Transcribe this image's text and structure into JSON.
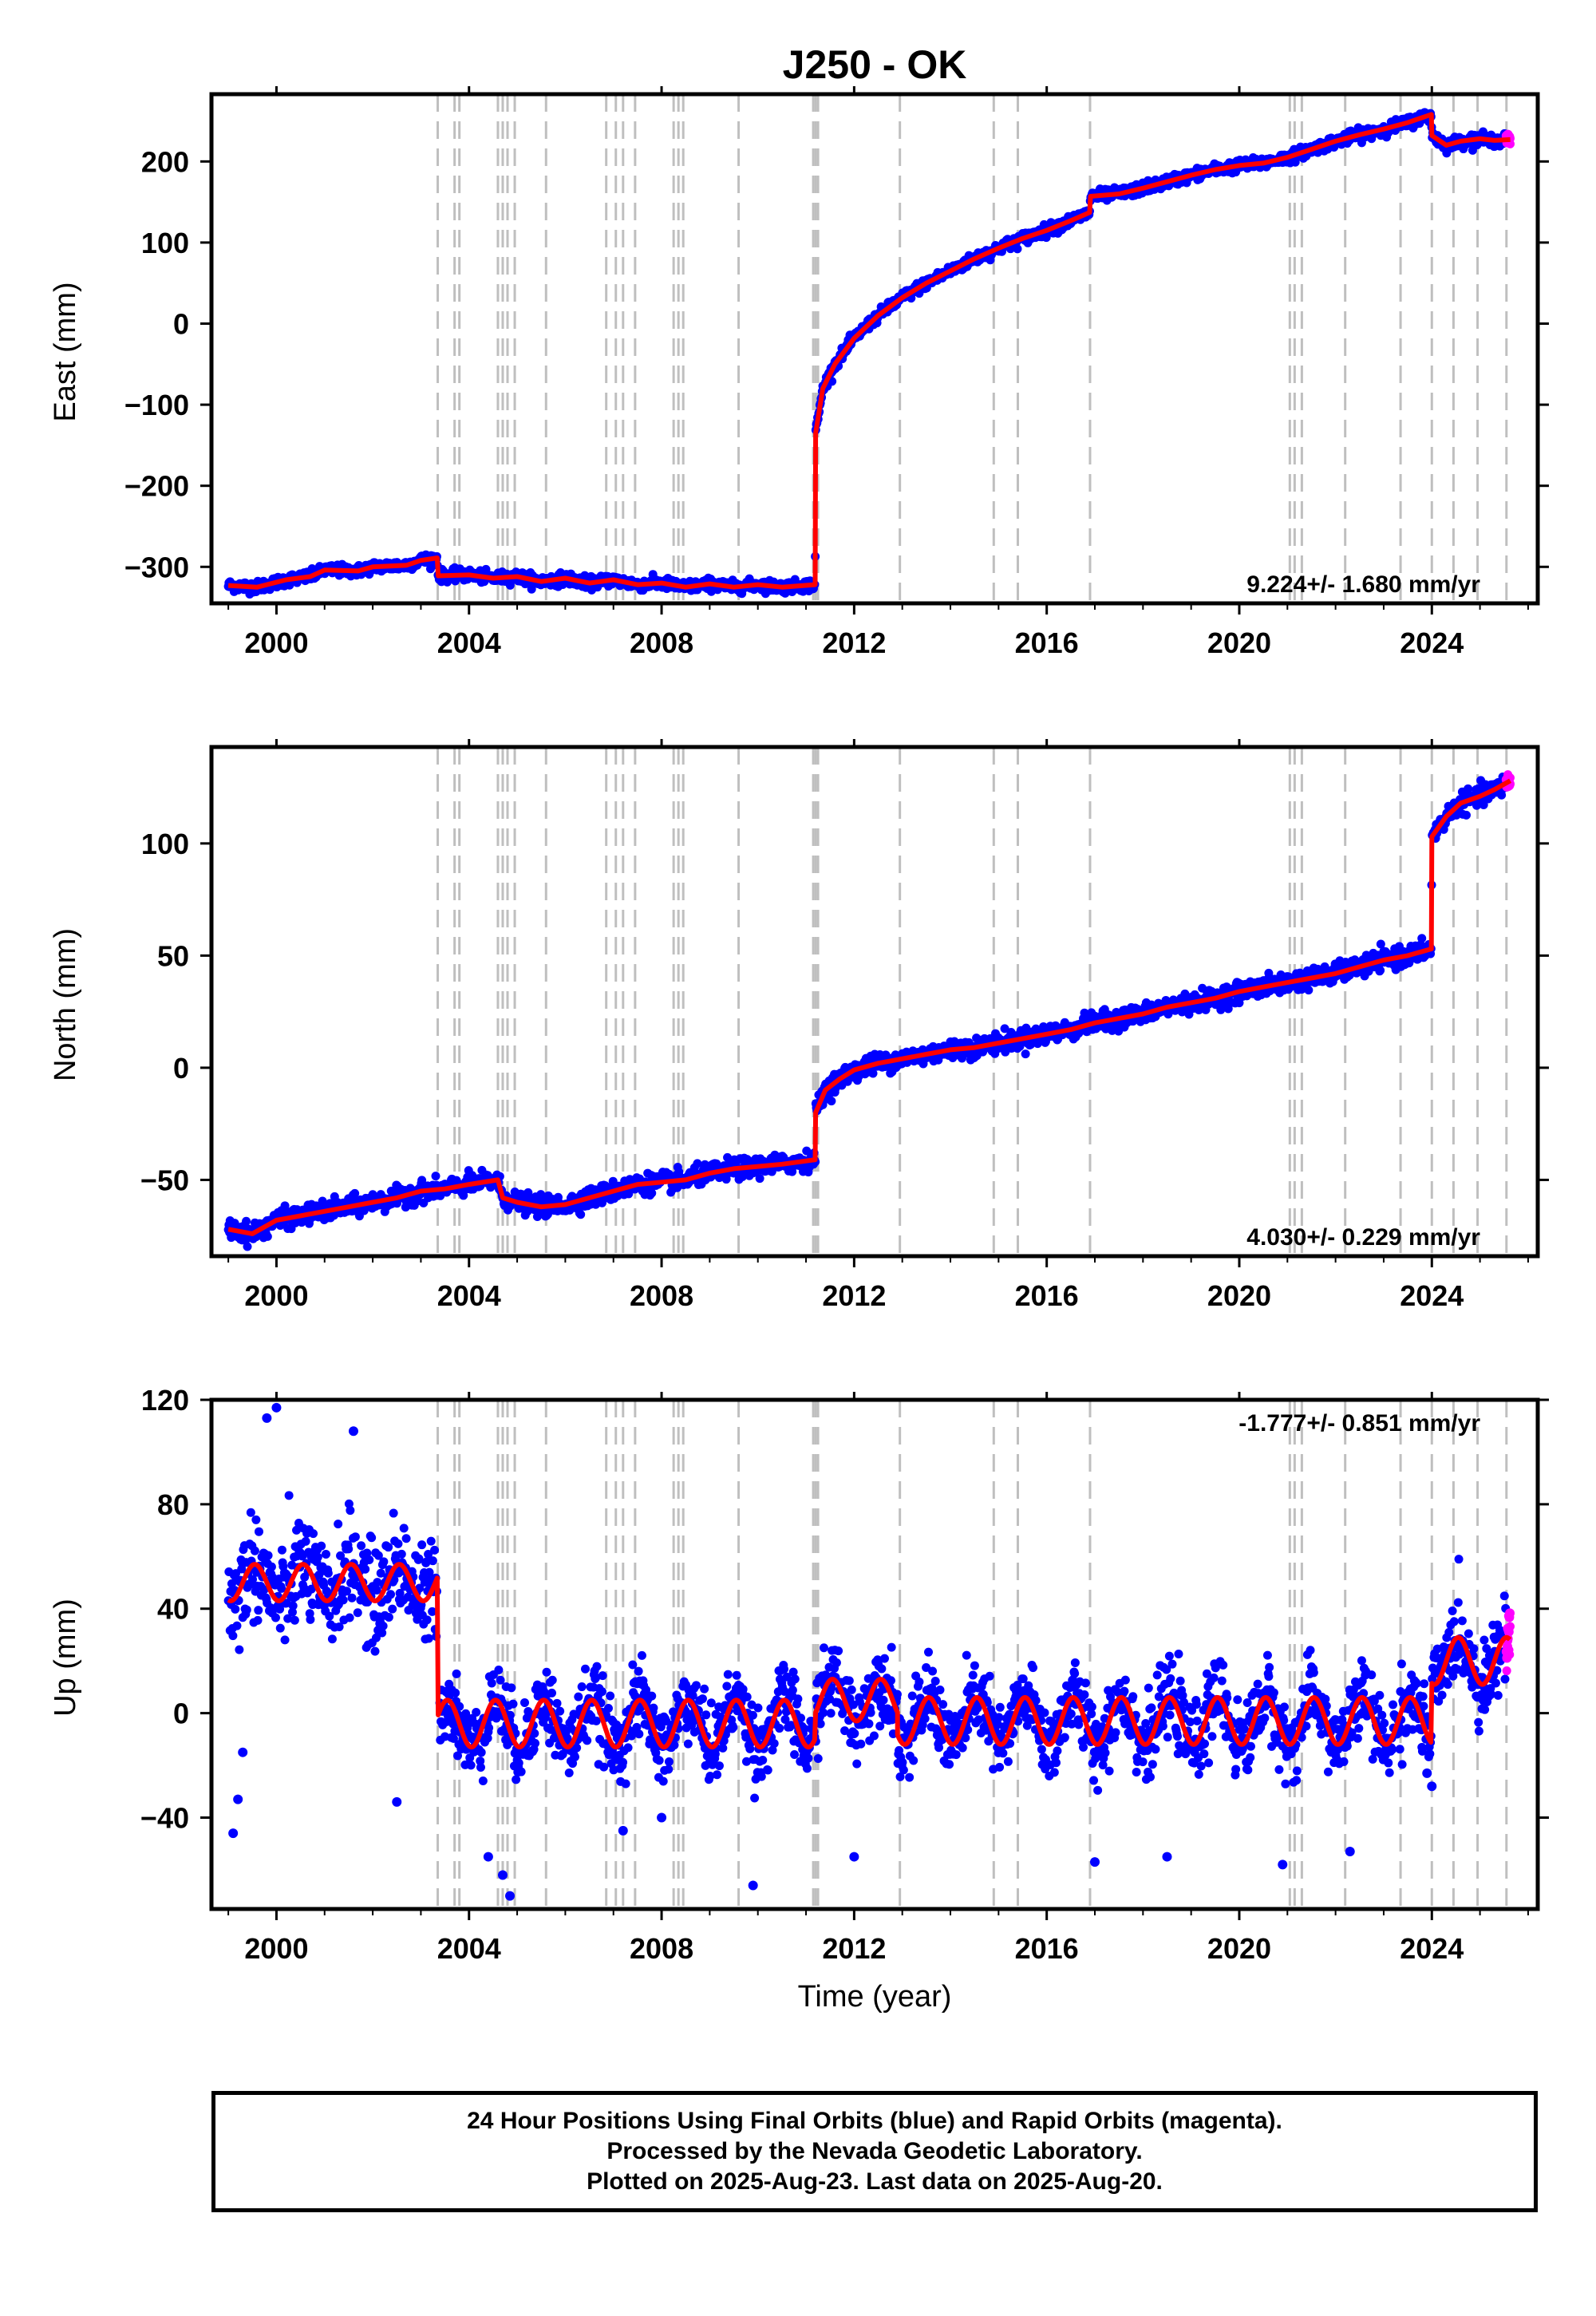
{
  "title": "J250 - OK",
  "xlabel": "Time (year)",
  "footer": {
    "line1": "24 Hour Positions Using Final Orbits (blue) and Rapid Orbits (magenta).",
    "line2": "Processed by the Nevada Geodetic Laboratory.",
    "line3": "Plotted on 2025-Aug-23. Last data on 2025-Aug-20."
  },
  "chart_data": [
    {
      "type": "scatter",
      "panel": "east",
      "ylabel": "East (mm)",
      "rate_text": "9.224+/- 1.680 mm/yr",
      "xlim": [
        1998.65,
        2026.2
      ],
      "ylim": [
        -345,
        283
      ],
      "xticks": [
        2000,
        2004,
        2008,
        2012,
        2016,
        2020,
        2024
      ],
      "yticks": [
        -300,
        -200,
        -100,
        0,
        100,
        200
      ],
      "ytick_labels": [
        "−300",
        "−200",
        "−100",
        "0",
        "100",
        "200"
      ],
      "equipment_changes": [
        2003.35,
        2003.7,
        2003.8,
        2004.6,
        2004.7,
        2004.8,
        2004.95,
        2005.6,
        2006.85,
        2007.05,
        2007.2,
        2007.45,
        2008.25,
        2008.35,
        2008.45,
        2009.6,
        2011.15,
        2011.2,
        2011.25,
        2012.95,
        2014.9,
        2015.4,
        2016.9,
        2021.05,
        2021.15,
        2021.3,
        2022.2,
        2023.35,
        2024.0,
        2024.45,
        2024.95,
        2025.55
      ],
      "model": [
        [
          1999.0,
          -323
        ],
        [
          1999.6,
          -325
        ],
        [
          2000.2,
          -316
        ],
        [
          2000.7,
          -312
        ],
        [
          2001.0,
          -304
        ],
        [
          2001.7,
          -305
        ],
        [
          2002.0,
          -300
        ],
        [
          2002.7,
          -298
        ],
        [
          2003.0,
          -292
        ],
        [
          2003.34,
          -289
        ],
        [
          2003.36,
          -311
        ],
        [
          2004.0,
          -310
        ],
        [
          2004.5,
          -314
        ],
        [
          2005.0,
          -312
        ],
        [
          2005.5,
          -318
        ],
        [
          2006.0,
          -314
        ],
        [
          2006.5,
          -320
        ],
        [
          2007.0,
          -316
        ],
        [
          2007.5,
          -322
        ],
        [
          2008.0,
          -320
        ],
        [
          2008.5,
          -325
        ],
        [
          2009.0,
          -321
        ],
        [
          2009.5,
          -325
        ],
        [
          2010.0,
          -322
        ],
        [
          2010.5,
          -325
        ],
        [
          2011.19,
          -322
        ],
        [
          2011.2,
          -135
        ],
        [
          2011.35,
          -80
        ],
        [
          2011.6,
          -50
        ],
        [
          2012.0,
          -18
        ],
        [
          2012.5,
          10
        ],
        [
          2013.0,
          32
        ],
        [
          2013.5,
          50
        ],
        [
          2014.0,
          65
        ],
        [
          2014.5,
          80
        ],
        [
          2015.0,
          93
        ],
        [
          2015.5,
          105
        ],
        [
          2016.0,
          115
        ],
        [
          2016.5,
          127
        ],
        [
          2016.89,
          137
        ],
        [
          2016.91,
          157
        ],
        [
          2017.5,
          160
        ],
        [
          2018.0,
          167
        ],
        [
          2018.5,
          175
        ],
        [
          2019.0,
          183
        ],
        [
          2019.5,
          190
        ],
        [
          2020.0,
          195
        ],
        [
          2020.5,
          198
        ],
        [
          2021.0,
          205
        ],
        [
          2021.5,
          215
        ],
        [
          2022.0,
          225
        ],
        [
          2022.5,
          233
        ],
        [
          2023.0,
          240
        ],
        [
          2023.5,
          248
        ],
        [
          2023.99,
          258
        ],
        [
          2024.0,
          232
        ],
        [
          2024.3,
          220
        ],
        [
          2024.6,
          225
        ],
        [
          2025.0,
          228
        ],
        [
          2025.3,
          226
        ],
        [
          2025.63,
          227
        ]
      ],
      "rapid_end": [
        2025.55,
        2025.62
      ],
      "noise_mm": 5
    },
    {
      "type": "scatter",
      "panel": "north",
      "ylabel": "North (mm)",
      "rate_text": "4.030+/- 0.229 mm/yr",
      "xlim": [
        1998.65,
        2026.2
      ],
      "ylim": [
        -84,
        143
      ],
      "xticks": [
        2000,
        2004,
        2008,
        2012,
        2016,
        2020,
        2024
      ],
      "yticks": [
        -50,
        0,
        50,
        100
      ],
      "ytick_labels": [
        "−50",
        "0",
        "50",
        "100"
      ],
      "equipment_changes": [
        2003.35,
        2003.7,
        2003.8,
        2004.6,
        2004.7,
        2004.8,
        2004.95,
        2005.6,
        2006.85,
        2007.05,
        2007.2,
        2007.45,
        2008.25,
        2008.35,
        2008.45,
        2009.6,
        2011.15,
        2011.2,
        2011.25,
        2012.95,
        2014.9,
        2015.4,
        2016.9,
        2021.05,
        2021.15,
        2021.3,
        2022.2,
        2023.35,
        2024.0,
        2024.45,
        2024.95,
        2025.55
      ],
      "model": [
        [
          1999.0,
          -72
        ],
        [
          1999.5,
          -74
        ],
        [
          2000.0,
          -68
        ],
        [
          2000.5,
          -66
        ],
        [
          2001.0,
          -64
        ],
        [
          2001.5,
          -62
        ],
        [
          2002.0,
          -60
        ],
        [
          2002.5,
          -58
        ],
        [
          2003.0,
          -55
        ],
        [
          2003.5,
          -54
        ],
        [
          2004.0,
          -52
        ],
        [
          2004.6,
          -50
        ],
        [
          2004.7,
          -58
        ],
        [
          2005.0,
          -60
        ],
        [
          2005.5,
          -62
        ],
        [
          2006.0,
          -61
        ],
        [
          2006.5,
          -58
        ],
        [
          2007.0,
          -55
        ],
        [
          2007.5,
          -52
        ],
        [
          2008.0,
          -51
        ],
        [
          2008.5,
          -50
        ],
        [
          2009.0,
          -47
        ],
        [
          2009.5,
          -45
        ],
        [
          2010.0,
          -44
        ],
        [
          2010.5,
          -43
        ],
        [
          2011.19,
          -41
        ],
        [
          2011.2,
          -20
        ],
        [
          2011.4,
          -10
        ],
        [
          2011.7,
          -5
        ],
        [
          2012.0,
          -1
        ],
        [
          2012.5,
          2
        ],
        [
          2013.0,
          4
        ],
        [
          2013.5,
          6
        ],
        [
          2014.0,
          8
        ],
        [
          2014.5,
          9
        ],
        [
          2015.0,
          11
        ],
        [
          2015.5,
          13
        ],
        [
          2016.0,
          15
        ],
        [
          2016.5,
          17
        ],
        [
          2017.0,
          20
        ],
        [
          2017.5,
          22
        ],
        [
          2018.0,
          24
        ],
        [
          2018.5,
          27
        ],
        [
          2019.0,
          29
        ],
        [
          2019.5,
          31
        ],
        [
          2020.0,
          34
        ],
        [
          2020.5,
          36
        ],
        [
          2021.0,
          38
        ],
        [
          2021.5,
          40
        ],
        [
          2022.0,
          42
        ],
        [
          2022.5,
          45
        ],
        [
          2023.0,
          48
        ],
        [
          2023.5,
          50
        ],
        [
          2023.99,
          53
        ],
        [
          2024.0,
          103
        ],
        [
          2024.3,
          112
        ],
        [
          2024.6,
          118
        ],
        [
          2025.0,
          121
        ],
        [
          2025.3,
          124
        ],
        [
          2025.63,
          128
        ]
      ],
      "rapid_end": [
        2025.55,
        2025.62
      ],
      "noise_mm": 3
    },
    {
      "type": "scatter",
      "panel": "up",
      "ylabel": "Up (mm)",
      "rate_text": "-1.777+/- 0.851 mm/yr",
      "xlim": [
        1998.65,
        2026.2
      ],
      "ylim": [
        -75,
        120
      ],
      "xticks": [
        2000,
        2004,
        2008,
        2012,
        2016,
        2020,
        2024
      ],
      "yticks": [
        -40,
        0,
        40,
        80,
        120
      ],
      "ytick_labels": [
        "−40",
        "0",
        "40",
        "80",
        "120"
      ],
      "equipment_changes": [
        2003.35,
        2003.7,
        2003.8,
        2004.6,
        2004.7,
        2004.8,
        2004.95,
        2005.6,
        2006.85,
        2007.05,
        2007.2,
        2007.45,
        2008.25,
        2008.35,
        2008.45,
        2009.6,
        2011.15,
        2011.2,
        2011.25,
        2012.95,
        2014.9,
        2015.4,
        2016.9,
        2021.05,
        2021.15,
        2021.3,
        2022.2,
        2023.35,
        2024.0,
        2024.45,
        2024.95,
        2025.55
      ],
      "model_seasonal": [
        {
          "start": 1999.0,
          "end": 2003.34,
          "mean": 50,
          "amp": 7
        },
        {
          "start": 2003.36,
          "end": 2011.19,
          "mean": -4,
          "amp": 9
        },
        {
          "start": 2011.2,
          "end": 2012.9,
          "mean": 5,
          "amp": 8
        },
        {
          "start": 2012.9,
          "end": 2023.99,
          "mean": -3,
          "amp": 9
        },
        {
          "start": 2024.0,
          "end": 2025.63,
          "mean": 20,
          "amp": 9
        }
      ],
      "rapid_end": [
        2025.55,
        2025.62
      ],
      "noise_mm": 10,
      "outliers": [
        [
          1999.1,
          -46
        ],
        [
          1999.2,
          -33
        ],
        [
          1999.3,
          -15
        ],
        [
          1999.8,
          113
        ],
        [
          2000.0,
          117
        ],
        [
          2001.6,
          108
        ],
        [
          2002.5,
          -34
        ],
        [
          2004.4,
          -55
        ],
        [
          2004.7,
          -62
        ],
        [
          2004.85,
          -70
        ],
        [
          2007.2,
          -45
        ],
        [
          2008.0,
          -40
        ],
        [
          2009.9,
          -66
        ],
        [
          2012.0,
          -55
        ],
        [
          2017.0,
          -57
        ],
        [
          2018.5,
          -55
        ],
        [
          2020.9,
          -58
        ],
        [
          2022.3,
          -53
        ],
        [
          2024.0,
          -28
        ],
        [
          2023.9,
          -23
        ]
      ]
    }
  ],
  "colors": {
    "final_orbits": "#0000ff",
    "rapid_orbits": "#ff00ff",
    "model": "#ff0000",
    "equipment_lines": "#bfbfbf",
    "frame": "#000000"
  }
}
